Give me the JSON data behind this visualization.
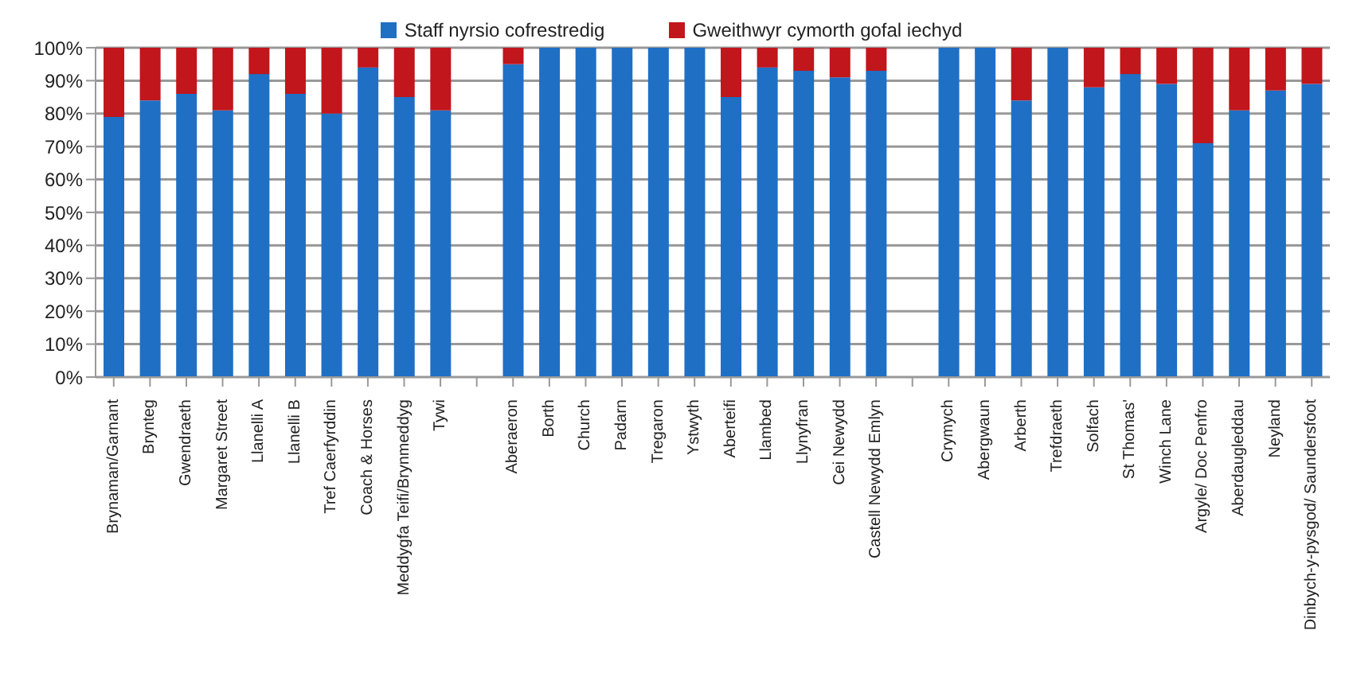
{
  "chart_data": {
    "type": "bar",
    "stacked": true,
    "categories": [
      "Brynaman/Garnant",
      "Brynteg",
      "Gwendraeth",
      "Margaret Street",
      "Llanelli A",
      "Llanelli B",
      "Tref Caerfyrddin",
      "Coach & Horses",
      "Meddygfa Teifi/Brynmeddyg",
      "Tywi",
      null,
      "Aberaeron",
      "Borth",
      "Church",
      "Padarn",
      "Tregaron",
      "Ystwyth",
      "Aberteifi",
      "Llambed",
      "Llynyfran",
      "Cei Newydd",
      "Castell Newydd Emlyn",
      null,
      "Crymych",
      "Abergwaun",
      "Arberth",
      "Trefdraeth",
      "Solfach",
      "St Thomas'",
      "Winch Lane",
      "Argyle/ Doc Penfro",
      "Aberdaugleddau",
      "Neyland",
      "Dinbych-y-pysgod/ Saundersfoot"
    ],
    "series": [
      {
        "name": "Staff nyrsio cofrestredig",
        "color": "#1f6fc5",
        "values": [
          79,
          84,
          86,
          81,
          92,
          86,
          80,
          94,
          85,
          81,
          null,
          95,
          100,
          100,
          100,
          100,
          100,
          85,
          94,
          93,
          91,
          93,
          null,
          100,
          100,
          84,
          100,
          88,
          92,
          89,
          71,
          81,
          87,
          89
        ]
      },
      {
        "name": "Gweithwyr cymorth gofal iechyd",
        "color": "#c0161c",
        "values": [
          21,
          16,
          14,
          19,
          8,
          14,
          20,
          6,
          15,
          19,
          null,
          5,
          0,
          0,
          0,
          0,
          0,
          15,
          6,
          7,
          9,
          7,
          null,
          0,
          0,
          16,
          0,
          12,
          8,
          11,
          29,
          19,
          13,
          11
        ]
      }
    ],
    "ylim": [
      0,
      100
    ],
    "yticks": [
      {
        "value": 0,
        "label": "0%"
      },
      {
        "value": 10,
        "label": "10%"
      },
      {
        "value": 20,
        "label": "20%"
      },
      {
        "value": 30,
        "label": "30%"
      },
      {
        "value": 40,
        "label": "40%"
      },
      {
        "value": 50,
        "label": "50%"
      },
      {
        "value": 60,
        "label": "60%"
      },
      {
        "value": 70,
        "label": "70%"
      },
      {
        "value": 80,
        "label": "80%"
      },
      {
        "value": 90,
        "label": "90%"
      },
      {
        "value": 100,
        "label": "100%"
      }
    ],
    "grid": "y",
    "legend": "top"
  }
}
